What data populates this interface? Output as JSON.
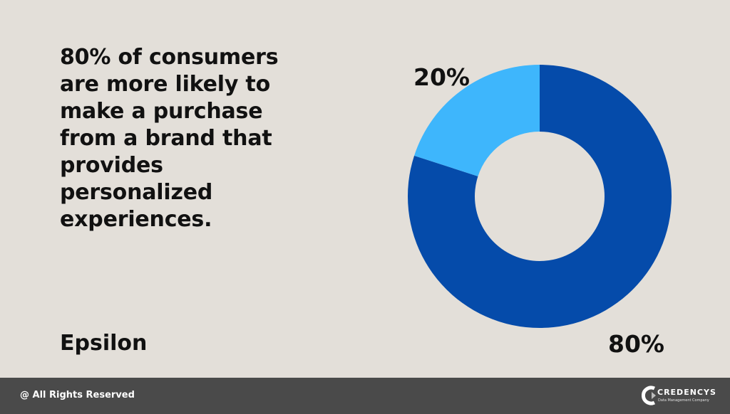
{
  "statement": "80% of consumers are more likely to make a purchase from a brand that provides personalized experiences.",
  "source": "Epsilon",
  "footer": {
    "copyright": "@ All Rights Reserved",
    "brand_name": "CREDENCYS",
    "brand_tagline": "Data Management Company",
    "background_color": "#4a4a4a"
  },
  "page_background_color": "#e3dfd9",
  "chart_data": {
    "type": "pie",
    "donut": true,
    "slices": [
      {
        "value": 80,
        "label": "80%",
        "color": "#054baa"
      },
      {
        "value": 20,
        "label": "20%",
        "color": "#3eb6fc"
      }
    ],
    "start_angle_deg": 0,
    "direction": "clockwise",
    "legend": "none"
  }
}
